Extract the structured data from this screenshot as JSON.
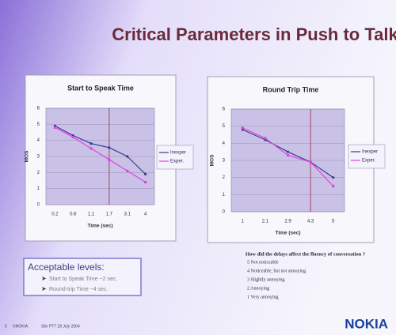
{
  "slide": {
    "title": "Critical Parameters in Push to Talk",
    "acceptable": {
      "heading": "Acceptable levels:",
      "items": [
        "Start to Speak Time ~2 sec.",
        "Round-trip Time ~4 sec."
      ]
    },
    "question": {
      "text": "How did the delays affect the fluency of conversation ?",
      "items": [
        "5  Not noticeable",
        "4  Noticeable, but not annoying",
        "3  Slightly annoying",
        "2  Annoying",
        "1  Very annoying"
      ]
    },
    "footer": {
      "page": "5",
      "copyright": "©NOKIA",
      "info": "Slin PTT 29 July 2004",
      "logo": "NOKIA"
    }
  },
  "chart_data": [
    {
      "type": "line",
      "title": "Start to Speak Time",
      "x_label": "Time (sec)",
      "y_label": "MOS",
      "categories": [
        "0.2",
        "0.6",
        "1.1",
        "1.7",
        "3.1",
        "4"
      ],
      "series": [
        {
          "name": "Inexper",
          "color": "#3a3a8c",
          "values": [
            4.9,
            4.3,
            3.8,
            3.55,
            3.0,
            1.9
          ]
        },
        {
          "name": "Exper.",
          "color": "#e044e0",
          "values": [
            4.8,
            4.2,
            3.5,
            2.8,
            2.1,
            1.4
          ]
        }
      ],
      "ylim": [
        0,
        6
      ],
      "yticks": [
        0,
        1,
        2,
        3,
        4,
        5,
        6
      ],
      "grid": true,
      "vline_category": 3,
      "vline_color": "#a02040",
      "legend": "right"
    },
    {
      "type": "line",
      "title": "Round Trip Time",
      "x_label": "Time (sec)",
      "y_label": "MOS",
      "categories": [
        "1",
        "2.1",
        "2.9",
        "4.3",
        "5"
      ],
      "series": [
        {
          "name": "Inexper",
          "color": "#3a3a8c",
          "values": [
            4.8,
            4.2,
            3.5,
            2.9,
            2.0
          ]
        },
        {
          "name": "Exper.",
          "color": "#e044e0",
          "values": [
            4.9,
            4.3,
            3.3,
            2.9,
            1.5
          ]
        }
      ],
      "ylim": [
        0,
        6
      ],
      "yticks": [
        0,
        1,
        2,
        3,
        4,
        5,
        6
      ],
      "grid": true,
      "vline_category": 3,
      "vline_color": "#a02040",
      "legend": "right"
    }
  ]
}
